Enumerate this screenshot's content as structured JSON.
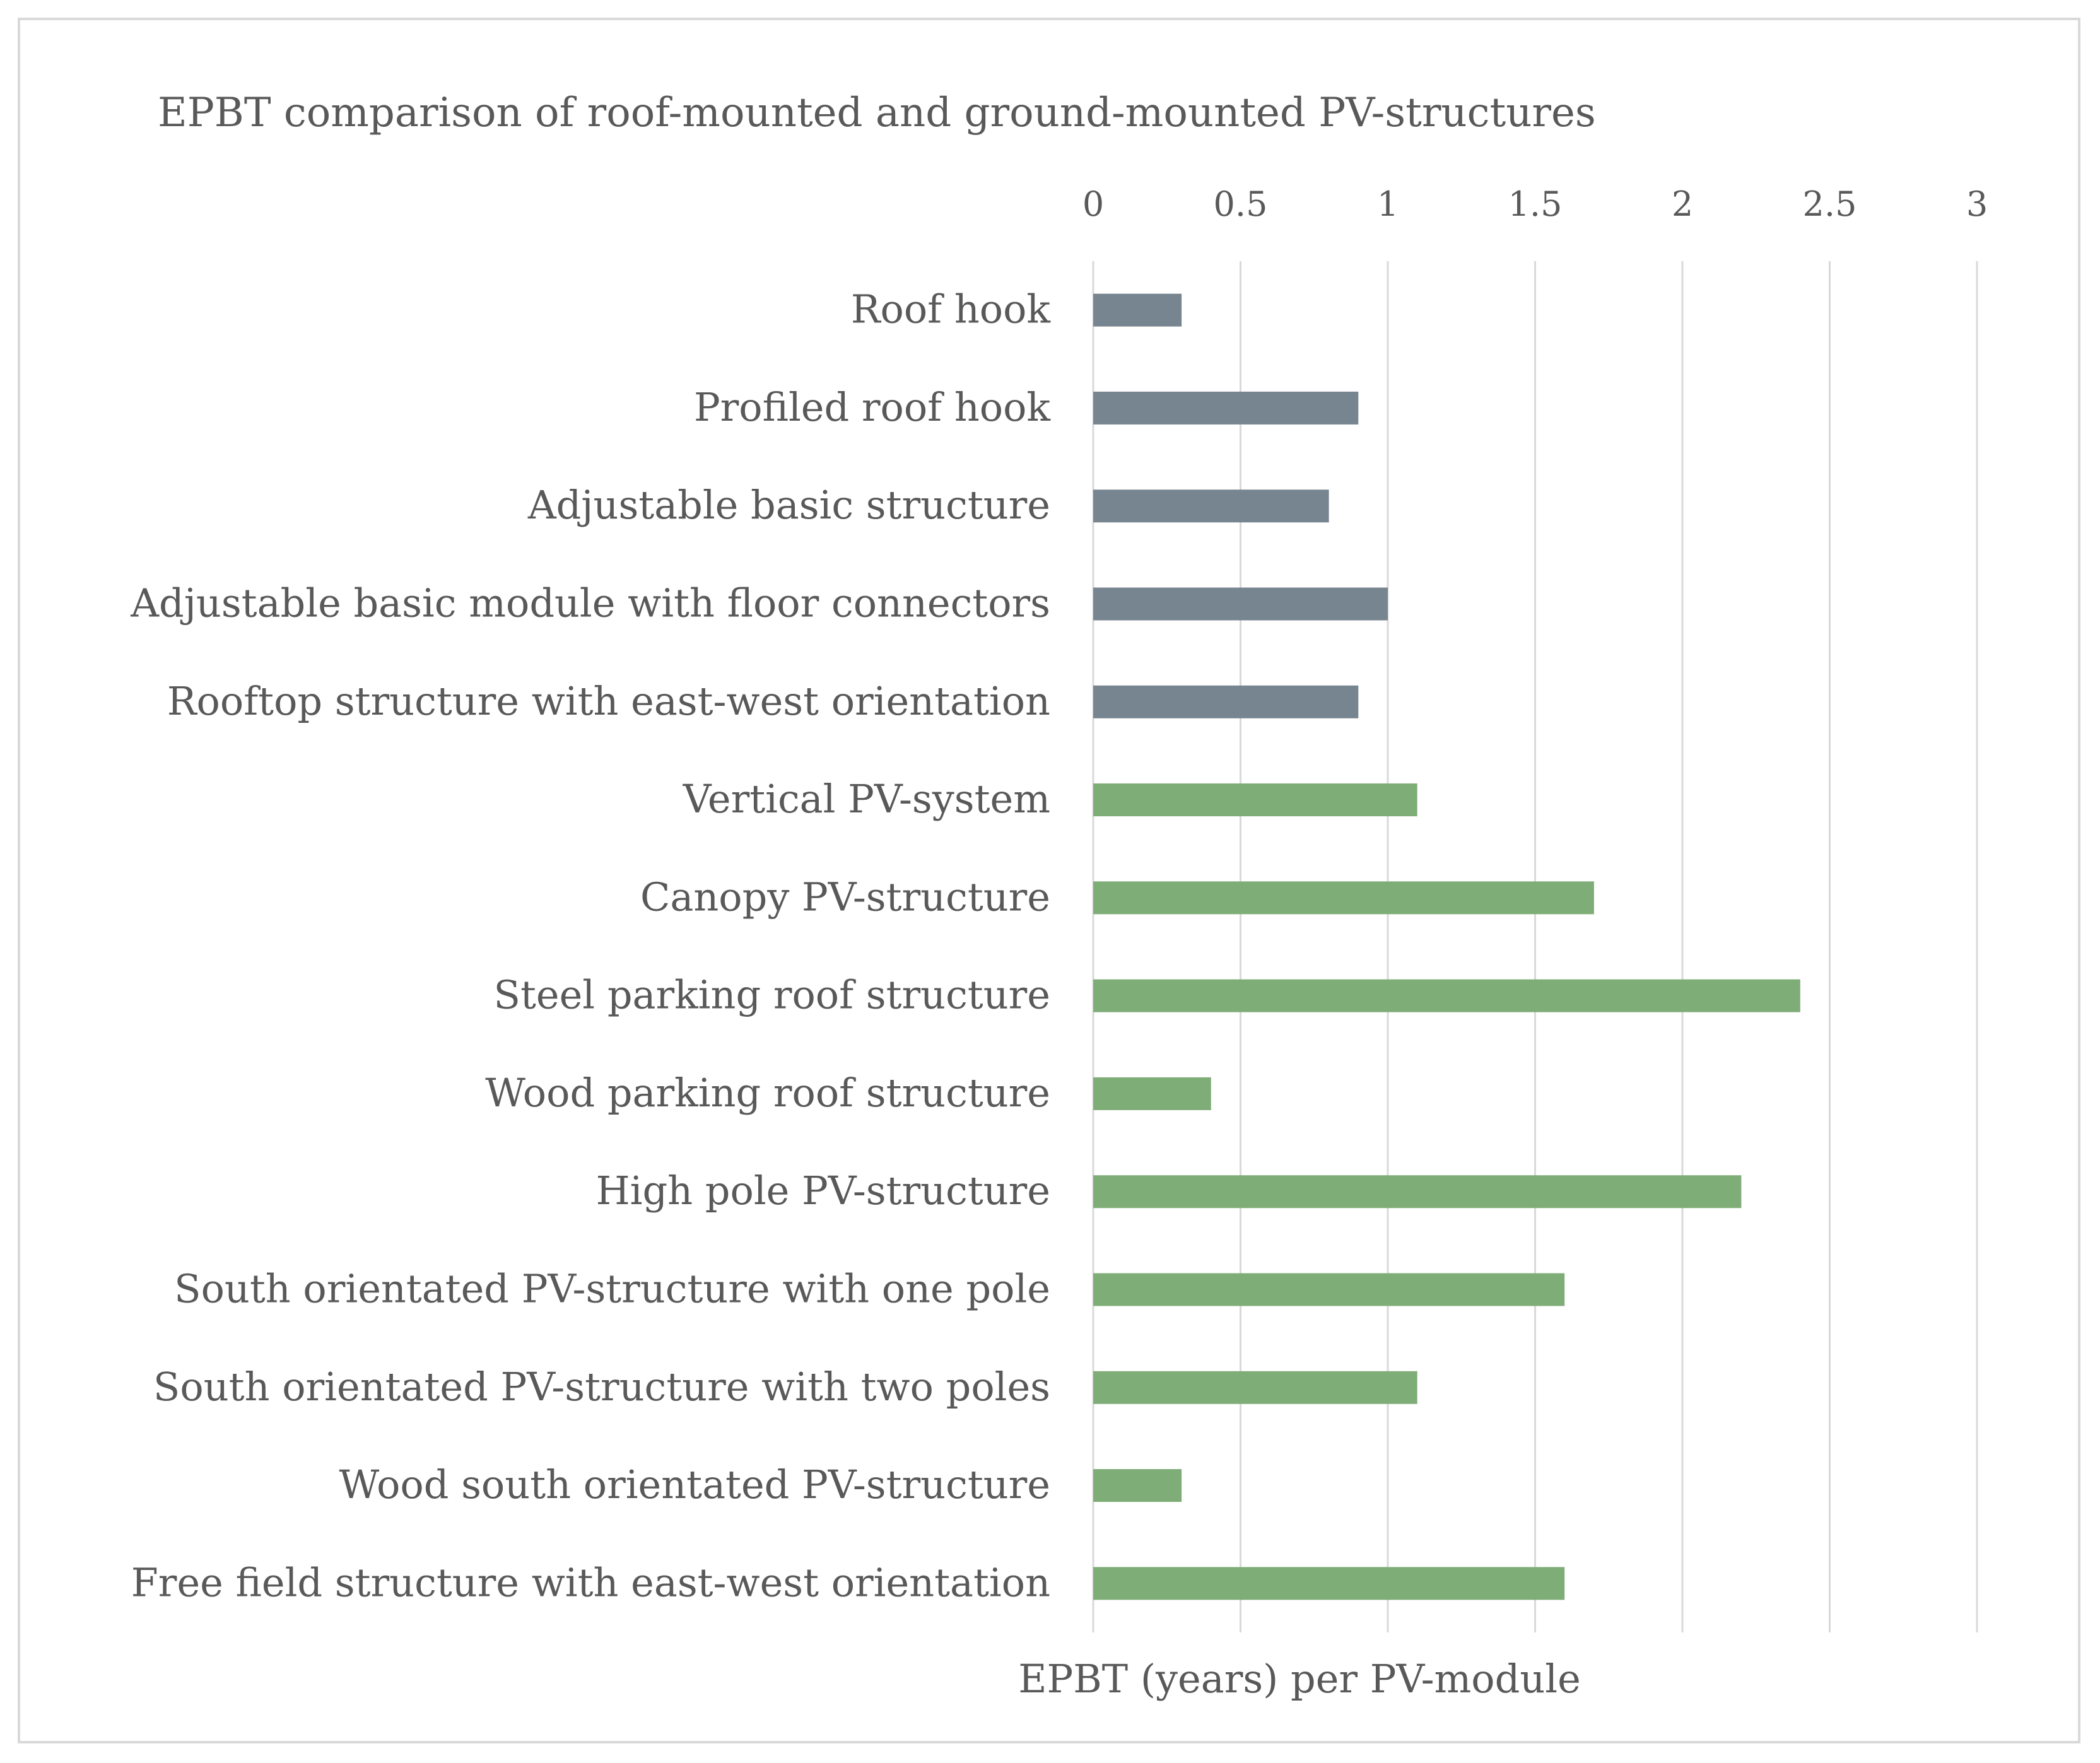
{
  "chart_data": {
    "type": "bar",
    "orientation": "horizontal",
    "title": "EPBT comparison of roof-mounted and ground-mounted PV-structures",
    "xlabel": "EPBT (years) per PV-module",
    "ylabel": "",
    "xlim": [
      0,
      3
    ],
    "ticks": [
      "0",
      "0.5",
      "1",
      "1.5",
      "2",
      "2.5",
      "3"
    ],
    "tick_values": [
      0,
      0.5,
      1,
      1.5,
      2,
      2.5,
      3
    ],
    "x_axis_position": "top",
    "grid": true,
    "legend": false,
    "groups": [
      {
        "name": "roof-mounted",
        "color": "#778591"
      },
      {
        "name": "ground-mounted",
        "color": "#7fad77"
      }
    ],
    "categories": [
      "Roof hook",
      "Profiled roof hook",
      "Adjustable basic structure",
      "Adjustable basic module with floor connectors",
      "Rooftop structure with east-west orientation",
      "Vertical PV-system",
      "Canopy PV-structure",
      "Steel parking roof structure",
      "Wood parking roof structure",
      "High pole PV-structure",
      "South orientated PV-structure with one pole",
      "South orientated PV-structure with two poles",
      "Wood south orientated PV-structure",
      "Free field structure with east-west orientation"
    ],
    "values": [
      0.3,
      0.9,
      0.8,
      1.0,
      0.9,
      1.1,
      1.7,
      2.4,
      0.4,
      2.2,
      1.6,
      1.1,
      0.3,
      1.6
    ],
    "bar_groups": [
      0,
      0,
      0,
      0,
      0,
      1,
      1,
      1,
      1,
      1,
      1,
      1,
      1,
      1
    ]
  },
  "style": {
    "grid_color": "#d9d9d9",
    "text_color": "#595959"
  }
}
